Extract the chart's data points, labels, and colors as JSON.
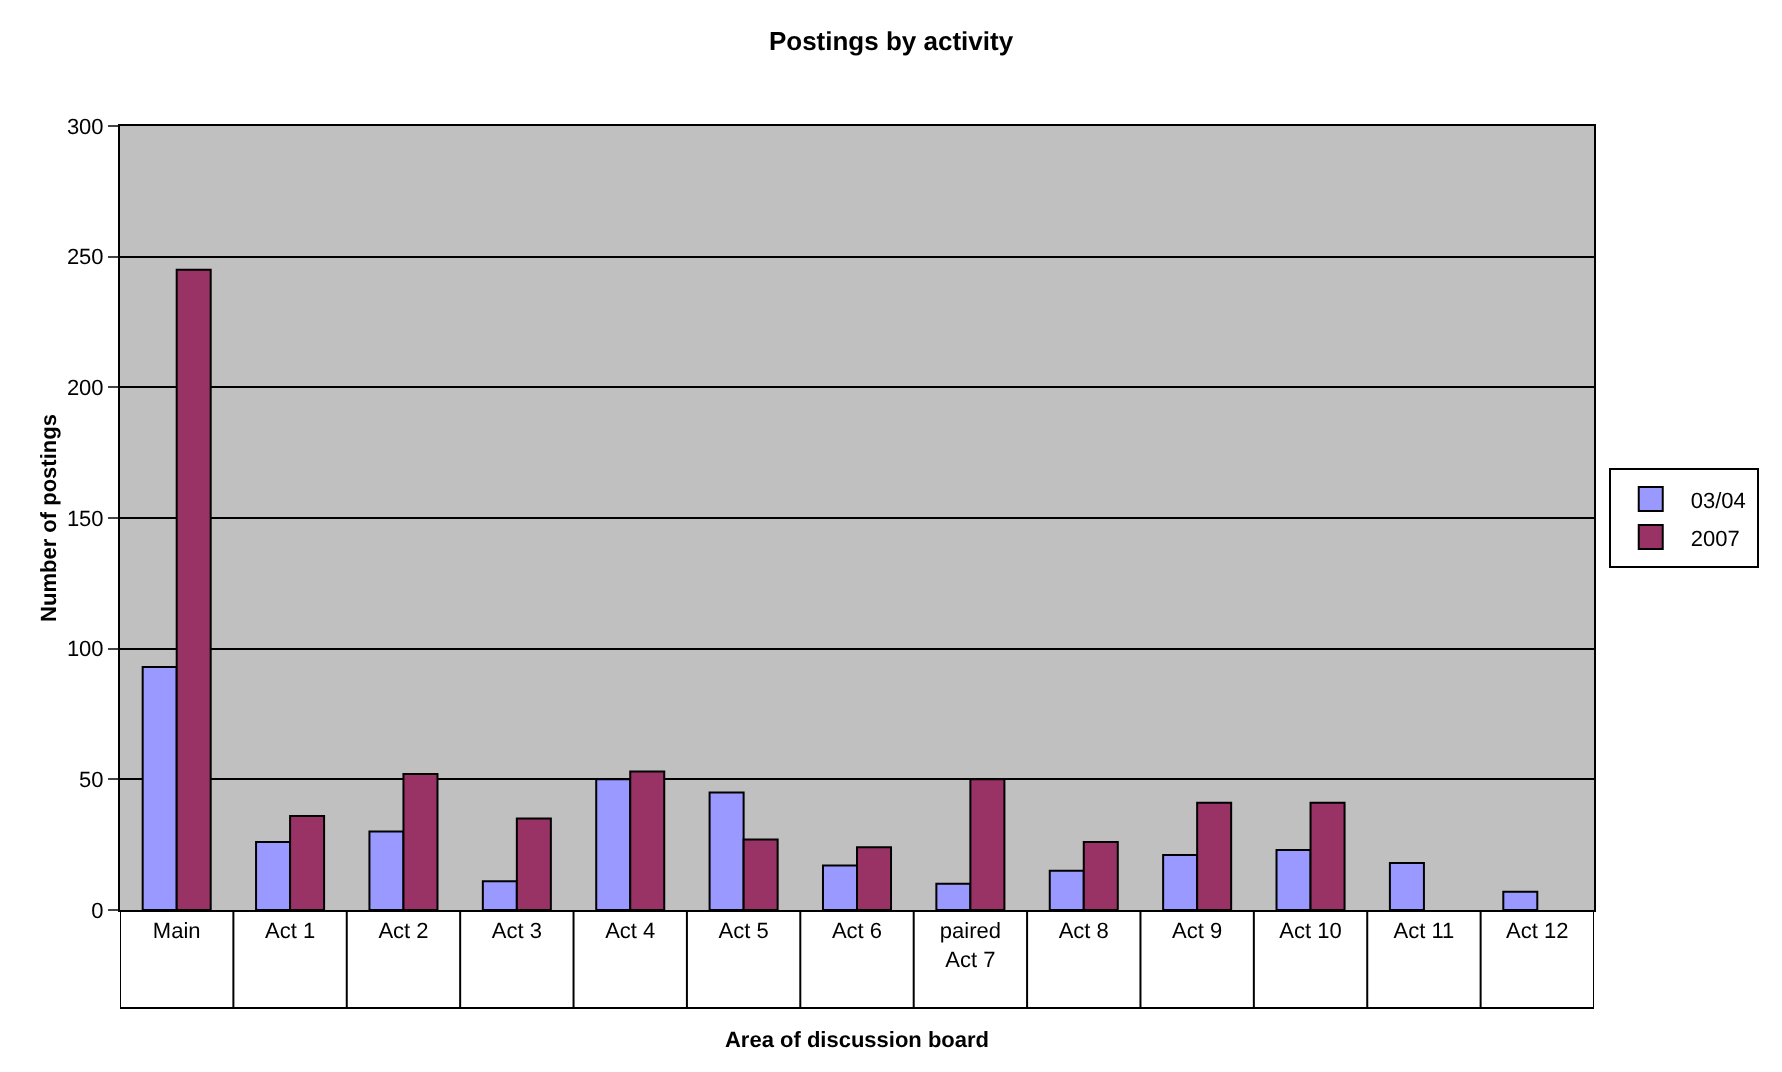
{
  "chart_data": {
    "type": "bar",
    "title": "Postings by activity",
    "xlabel": "Area of discussion board",
    "ylabel": "Number of postings",
    "categories": [
      "Main",
      "Act 1",
      "Act 2",
      "Act 3",
      "Act 4",
      "Act 5",
      "Act 6",
      "paired\nAct 7",
      "Act 8",
      "Act 9",
      "Act 10",
      "Act 11",
      "Act 12"
    ],
    "series": [
      {
        "name": "03/04",
        "color": "#9999ff",
        "values": [
          93,
          26,
          30,
          11,
          50,
          45,
          17,
          10,
          15,
          21,
          23,
          18,
          7
        ]
      },
      {
        "name": "2007",
        "color": "#993366",
        "values": [
          245,
          36,
          52,
          35,
          53,
          27,
          24,
          50,
          26,
          41,
          41,
          null,
          null
        ]
      }
    ],
    "ylim": [
      0,
      300
    ],
    "yticks": [
      0,
      50,
      100,
      150,
      200,
      250,
      300
    ],
    "grid": "y",
    "legend": "right"
  }
}
